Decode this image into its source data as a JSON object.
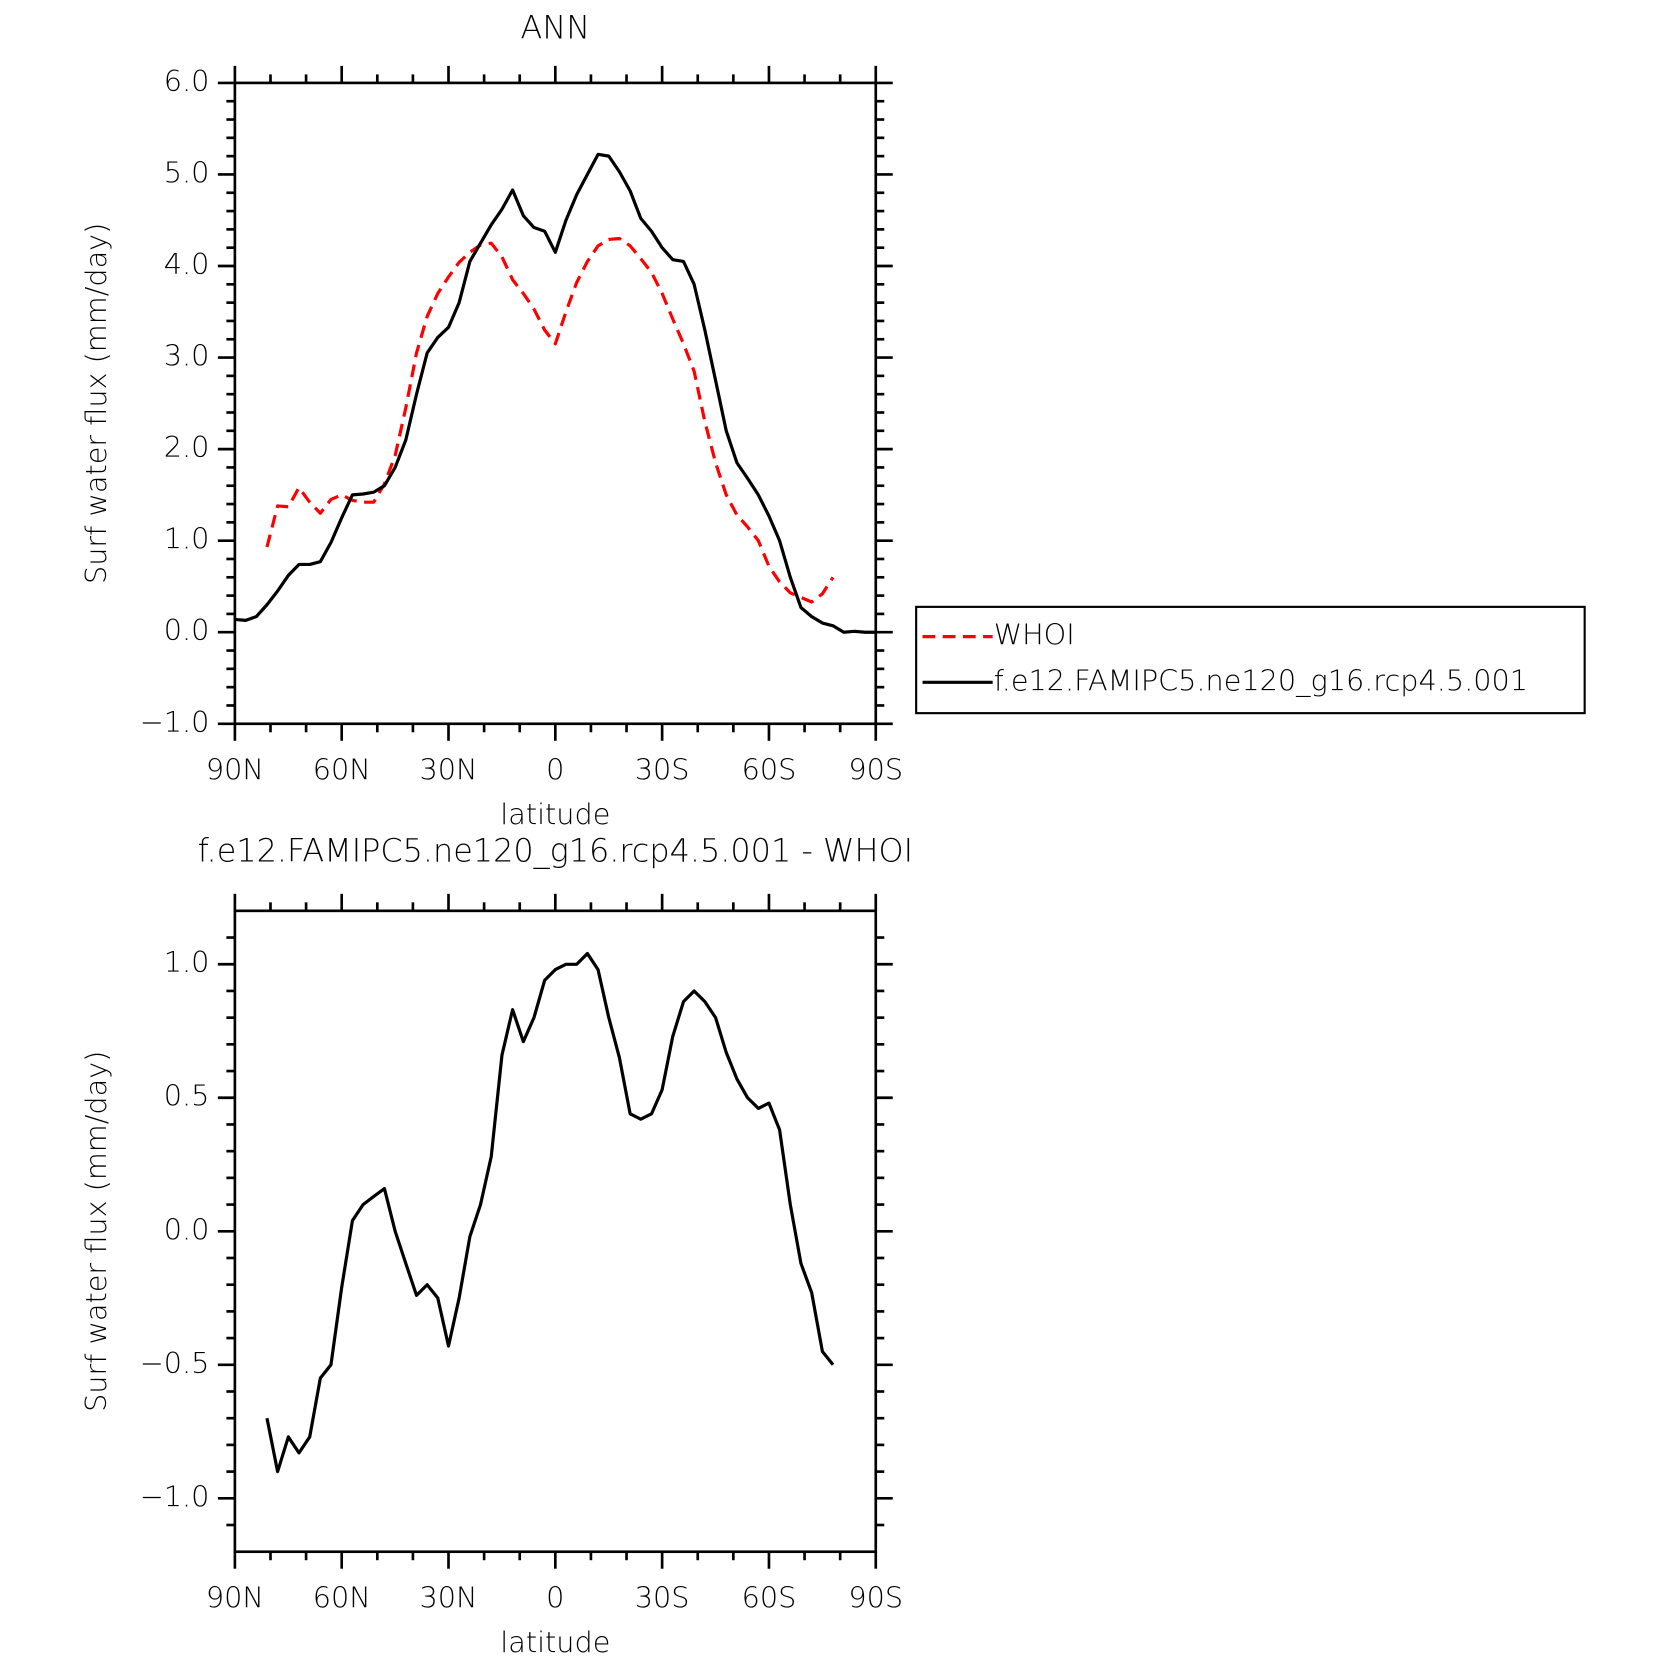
{
  "chart_data": [
    {
      "type": "line",
      "title": "ANN",
      "ylabel": "Surf water flux (mm/day)",
      "xlabel": "latitude",
      "x": [
        90,
        87,
        84,
        81,
        78,
        75,
        72,
        69,
        66,
        63,
        60,
        57,
        54,
        51,
        48,
        45,
        42,
        39,
        36,
        33,
        30,
        27,
        24,
        21,
        18,
        15,
        12,
        9,
        6,
        3,
        0,
        -3,
        -6,
        -9,
        -12,
        -15,
        -18,
        -21,
        -24,
        -27,
        -30,
        -33,
        -36,
        -39,
        -42,
        -45,
        -48,
        -51,
        -54,
        -57,
        -60,
        -63,
        -66,
        -69,
        -72,
        -75,
        -78,
        -81,
        -84,
        -87,
        -90
      ],
      "series": [
        {
          "name": "WHOI",
          "color": "#ff0000",
          "dash": "dashed",
          "values": [
            null,
            null,
            null,
            0.93,
            1.38,
            1.37,
            1.58,
            1.42,
            1.3,
            1.45,
            1.5,
            1.44,
            1.42,
            1.42,
            1.62,
            1.93,
            2.45,
            3.05,
            3.45,
            3.7,
            3.88,
            4.04,
            4.15,
            4.23,
            4.25,
            4.1,
            3.85,
            3.7,
            3.53,
            3.3,
            3.15,
            3.5,
            3.82,
            4.05,
            4.22,
            4.29,
            4.3,
            4.22,
            4.08,
            3.93,
            3.7,
            3.42,
            3.15,
            2.85,
            2.3,
            1.85,
            1.5,
            1.28,
            1.15,
            1.0,
            0.72,
            0.55,
            0.43,
            0.38,
            0.33,
            0.42,
            0.6,
            null,
            null,
            null,
            null
          ]
        },
        {
          "name": "f.e12.FAMIPC5.ne120_g16.rcp4.5.001",
          "color": "#000000",
          "dash": "solid",
          "values": [
            0.14,
            0.13,
            0.17,
            0.3,
            0.45,
            0.62,
            0.74,
            0.74,
            0.77,
            0.98,
            1.25,
            1.5,
            1.51,
            1.53,
            1.6,
            1.8,
            2.1,
            2.6,
            3.05,
            3.22,
            3.33,
            3.6,
            4.05,
            4.25,
            4.45,
            4.62,
            4.83,
            4.55,
            4.42,
            4.38,
            4.15,
            4.5,
            4.78,
            5.0,
            5.22,
            5.2,
            5.03,
            4.82,
            4.52,
            4.38,
            4.2,
            4.07,
            4.05,
            3.8,
            3.3,
            2.75,
            2.2,
            1.85,
            1.68,
            1.5,
            1.27,
            1.0,
            0.6,
            0.27,
            0.17,
            0.1,
            0.07,
            0.0,
            0.01,
            0.0,
            0.0
          ]
        }
      ],
      "xlim": [
        90,
        -90
      ],
      "xticks": [
        {
          "value": 90,
          "label": "90N"
        },
        {
          "value": 60,
          "label": "60N"
        },
        {
          "value": 30,
          "label": "30N"
        },
        0,
        {
          "value": -30,
          "label": "30S"
        },
        {
          "value": -60,
          "label": "60S"
        },
        {
          "value": -90,
          "label": "90S"
        }
      ],
      "minor_xticks": [
        80,
        70,
        50,
        40,
        20,
        10,
        -10,
        -20,
        -40,
        -50,
        -70,
        -80
      ],
      "ylim": [
        -1,
        6
      ],
      "yticks": [
        {
          "value": -1,
          "label": "−1.0"
        },
        {
          "value": 0,
          "label": "0.0"
        },
        {
          "value": 1,
          "label": "1.0"
        },
        {
          "value": 2,
          "label": "2.0"
        },
        {
          "value": 3,
          "label": "3.0"
        },
        {
          "value": 4,
          "label": "4.0"
        },
        {
          "value": 5,
          "label": "5.0"
        },
        {
          "value": 6,
          "label": "6.0"
        }
      ],
      "minor_yticks": [
        -0.8,
        -0.6,
        -0.4,
        -0.2,
        0.2,
        0.4,
        0.6,
        0.8,
        1.2,
        1.4,
        1.6,
        1.8,
        2.2,
        2.4,
        2.6,
        2.8,
        3.2,
        3.4,
        3.6,
        3.8,
        4.2,
        4.4,
        4.6,
        4.8,
        5.2,
        5.4,
        5.6,
        5.8
      ],
      "grid": false,
      "legend": "right"
    },
    {
      "type": "line",
      "title": "f.e12.FAMIPC5.ne120_g16.rcp4.5.001 - WHOI",
      "ylabel": "Surf water flux (mm/day)",
      "xlabel": "latitude",
      "x": [
        90,
        87,
        84,
        81,
        78,
        75,
        72,
        69,
        66,
        63,
        60,
        57,
        54,
        51,
        48,
        45,
        42,
        39,
        36,
        33,
        30,
        27,
        24,
        21,
        18,
        15,
        12,
        9,
        6,
        3,
        0,
        -3,
        -6,
        -9,
        -12,
        -15,
        -18,
        -21,
        -24,
        -27,
        -30,
        -33,
        -36,
        -39,
        -42,
        -45,
        -48,
        -51,
        -54,
        -57,
        -60,
        -63,
        -66,
        -69,
        -72,
        -75,
        -78,
        -81,
        -84,
        -87,
        -90
      ],
      "values": [
        null,
        null,
        null,
        -0.7,
        -0.9,
        -0.77,
        -0.83,
        -0.77,
        -0.55,
        -0.5,
        -0.21,
        0.04,
        0.1,
        0.13,
        0.16,
        0.0,
        -0.12,
        -0.24,
        -0.2,
        -0.25,
        -0.43,
        -0.25,
        -0.02,
        0.1,
        0.28,
        0.66,
        0.83,
        0.71,
        0.8,
        0.94,
        0.98,
        1.0,
        1.0,
        1.04,
        0.98,
        0.8,
        0.65,
        0.44,
        0.42,
        0.44,
        0.53,
        0.73,
        0.86,
        0.9,
        0.86,
        0.8,
        0.67,
        0.57,
        0.5,
        0.46,
        0.48,
        0.38,
        0.1,
        -0.12,
        -0.23,
        -0.45,
        -0.5,
        null,
        null,
        null,
        null
      ],
      "color": "#000000",
      "xlim": [
        90,
        -90
      ],
      "xticks": [
        {
          "value": 90,
          "label": "90N"
        },
        {
          "value": 60,
          "label": "60N"
        },
        {
          "value": 30,
          "label": "30N"
        },
        0,
        {
          "value": -30,
          "label": "30S"
        },
        {
          "value": -60,
          "label": "60S"
        },
        {
          "value": -90,
          "label": "90S"
        }
      ],
      "minor_xticks": [
        80,
        70,
        50,
        40,
        20,
        10,
        -10,
        -20,
        -40,
        -50,
        -70,
        -80
      ],
      "ylim": [
        -1.2,
        1.2
      ],
      "yticks": [
        {
          "value": -1,
          "label": "−1.0"
        },
        {
          "value": -0.5,
          "label": "−0.5"
        },
        {
          "value": 0,
          "label": "0.0"
        },
        {
          "value": 0.5,
          "label": "0.5"
        },
        {
          "value": 1,
          "label": "1.0"
        }
      ],
      "minor_yticks": [
        -1.1,
        -0.9,
        -0.8,
        -0.7,
        -0.6,
        -0.4,
        -0.3,
        -0.2,
        -0.1,
        0.1,
        0.2,
        0.3,
        0.4,
        0.6,
        0.7,
        0.8,
        0.9,
        1.1
      ],
      "grid": false
    }
  ]
}
